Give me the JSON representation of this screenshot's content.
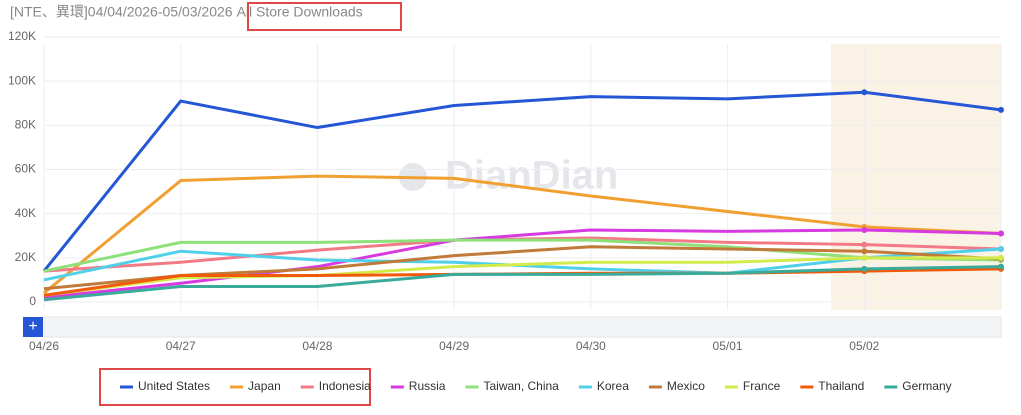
{
  "chart_data": {
    "type": "line",
    "title": "[NTE、異環]04/04/2026-05/03/2026",
    "subtitle": "All Store Downloads",
    "watermark": "DianDian",
    "categories": [
      "04/26",
      "04/27",
      "04/28",
      "04/29",
      "04/30",
      "05/01",
      "05/02",
      null
    ],
    "ylim": [
      0,
      120000
    ],
    "yticks": [
      0,
      {
        "value": 20000,
        "label": "20K"
      },
      {
        "value": 40000,
        "label": "40K"
      },
      {
        "value": 60000,
        "label": "60K"
      },
      {
        "value": 80000,
        "label": "80K"
      },
      {
        "value": 100000,
        "label": "100K"
      },
      {
        "value": 120000,
        "label": "120K"
      }
    ],
    "grid": true,
    "series": [
      {
        "name": "United States",
        "color": "#2456d6",
        "values": [
          14000,
          91000,
          79000,
          89000,
          93000,
          92000,
          95000,
          87000
        ]
      },
      {
        "name": "Japan",
        "color": "#f0a030",
        "values": [
          4000,
          55000,
          57000,
          56000,
          48000,
          41000,
          34000,
          31000
        ]
      },
      {
        "name": "Indonesia",
        "color": "#f27a86",
        "values": [
          14000,
          18000,
          23500,
          28000,
          29000,
          27000,
          26000,
          24000
        ]
      },
      {
        "name": "Russia",
        "color": "#d63ae0",
        "values": [
          2000,
          8500,
          16000,
          28000,
          32600,
          32000,
          32600,
          31000
        ]
      },
      {
        "name": "Taiwan, China",
        "color": "#8ee07a",
        "values": [
          14000,
          27000,
          27000,
          28000,
          28000,
          25000,
          20000,
          19000
        ]
      },
      {
        "name": "Korea",
        "color": "#4fd0e8",
        "values": [
          10000,
          23000,
          19000,
          18000,
          15000,
          13000,
          20000,
          24000
        ]
      },
      {
        "name": "Mexico",
        "color": "#c07a3a",
        "values": [
          6000,
          12000,
          15000,
          21000,
          25000,
          24000,
          23000,
          19500
        ]
      },
      {
        "name": "France",
        "color": "#d4ea4a",
        "values": [
          3000,
          11000,
          12000,
          16000,
          18000,
          18000,
          20000,
          20000
        ]
      },
      {
        "name": "Thailand",
        "color": "#f05a0a",
        "values": [
          3000,
          12000,
          12000,
          12500,
          13000,
          13000,
          14000,
          15000
        ]
      },
      {
        "name": "Germany",
        "color": "#3aaa9a",
        "values": [
          1000,
          7000,
          7000,
          12500,
          12500,
          13000,
          15000,
          16000
        ]
      }
    ]
  }
}
